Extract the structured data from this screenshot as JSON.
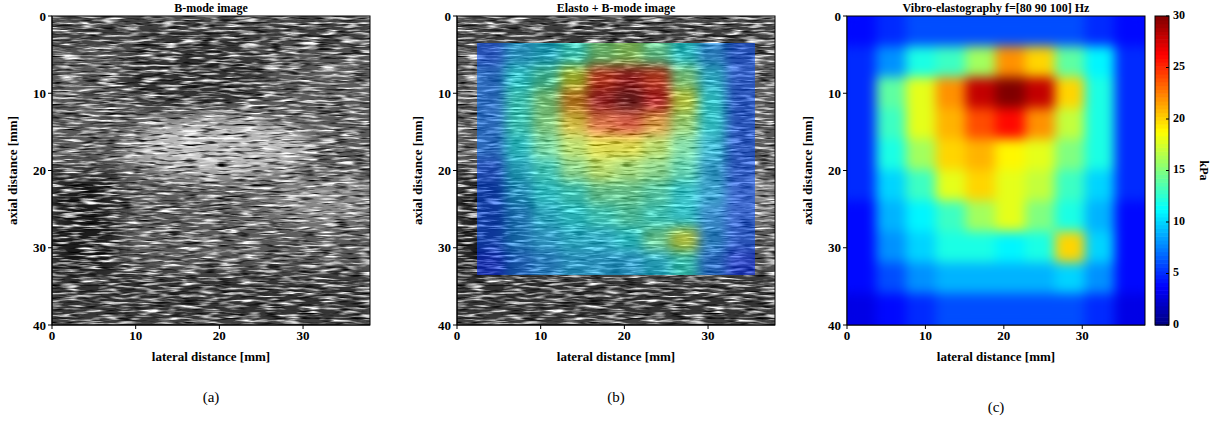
{
  "chart_data": [
    {
      "type": "image",
      "title": "B-mode image",
      "xlabel": "lateral distance [mm]",
      "ylabel": "axial distance [mm]",
      "xlim": [
        0,
        38
      ],
      "ylim": [
        0,
        40
      ],
      "xticks": [
        0,
        10,
        20,
        30
      ],
      "yticks": [
        0,
        10,
        20,
        30,
        40
      ],
      "annotations": [
        "(a)"
      ]
    },
    {
      "type": "overlay",
      "title": "Elasto + B-mode image",
      "xlabel": "lateral distance [mm]",
      "ylabel": "axial distance [mm]",
      "xlim": [
        0,
        38
      ],
      "ylim": [
        0,
        40
      ],
      "xticks": [
        0,
        10,
        20,
        30
      ],
      "yticks": [
        0,
        10,
        20,
        30,
        40
      ],
      "x": [
        4.15,
        7.45,
        10.75,
        14.05,
        17.35,
        20.65,
        23.95,
        27.25,
        30.55,
        33.85
      ],
      "y": [
        5,
        8,
        11,
        14,
        17,
        20,
        23,
        26,
        29,
        32
      ],
      "values": [
        [
          6,
          9,
          10,
          12,
          15,
          16,
          14,
          11,
          8,
          6
        ],
        [
          7,
          11,
          13,
          18,
          25,
          28,
          25,
          15,
          10,
          6
        ],
        [
          7,
          12,
          15,
          22,
          28,
          30,
          27,
          18,
          11,
          6
        ],
        [
          7,
          12,
          15,
          20,
          24,
          25,
          22,
          16,
          11,
          6
        ],
        [
          7,
          11,
          14,
          17,
          19,
          19,
          17,
          14,
          10,
          6
        ],
        [
          6,
          10,
          12,
          15,
          17,
          16,
          15,
          13,
          9,
          6
        ],
        [
          6,
          9,
          11,
          12,
          14,
          14,
          13,
          11,
          9,
          6
        ],
        [
          6,
          8,
          10,
          11,
          12,
          13,
          12,
          11,
          8,
          6
        ],
        [
          6,
          8,
          9,
          10,
          10,
          11,
          14,
          18,
          8,
          6
        ],
        [
          5,
          7,
          8,
          9,
          9,
          9,
          10,
          12,
          7,
          5
        ]
      ],
      "color_range": [
        0,
        30
      ],
      "annotations": [
        "(b)"
      ]
    },
    {
      "type": "heatmap",
      "title": "Vibro-elastography f=[80 90 100] Hz",
      "xlabel": "lateral distance [mm]",
      "ylabel": "axial distance [mm]",
      "xlim": [
        0,
        38
      ],
      "ylim": [
        0,
        40
      ],
      "xticks": [
        0,
        10,
        20,
        30
      ],
      "yticks": [
        0,
        10,
        20,
        30,
        40
      ],
      "x": [
        1.9,
        5.7,
        9.5,
        13.3,
        17.1,
        20.9,
        24.7,
        28.5,
        32.3,
        36.1
      ],
      "y": [
        2,
        6,
        10,
        14,
        18,
        22,
        26,
        30,
        34,
        38
      ],
      "values": [
        [
          4,
          5,
          6,
          6,
          6,
          6,
          6,
          6,
          5,
          4
        ],
        [
          5,
          8,
          12,
          13,
          16,
          22,
          20,
          14,
          11,
          5
        ],
        [
          5,
          14,
          18,
          22,
          28,
          30,
          28,
          20,
          12,
          5
        ],
        [
          5,
          13,
          18,
          21,
          24,
          26,
          22,
          17,
          12,
          5
        ],
        [
          5,
          12,
          16,
          20,
          21,
          19,
          18,
          15,
          12,
          5
        ],
        [
          5,
          10,
          13,
          18,
          20,
          18,
          17,
          13,
          10,
          5
        ],
        [
          4,
          9,
          11,
          13,
          16,
          18,
          15,
          12,
          9,
          4
        ],
        [
          4,
          8,
          10,
          12,
          12,
          11,
          12,
          20,
          10,
          4
        ],
        [
          4,
          6,
          8,
          9,
          9,
          9,
          9,
          10,
          8,
          4
        ],
        [
          3,
          4,
          5,
          6,
          6,
          6,
          6,
          6,
          5,
          3
        ]
      ],
      "colorbar": {
        "label": "kPa",
        "range": [
          0,
          30
        ],
        "ticks": [
          0,
          5,
          10,
          15,
          20,
          25,
          30
        ]
      },
      "annotations": [
        "(c)"
      ]
    }
  ]
}
